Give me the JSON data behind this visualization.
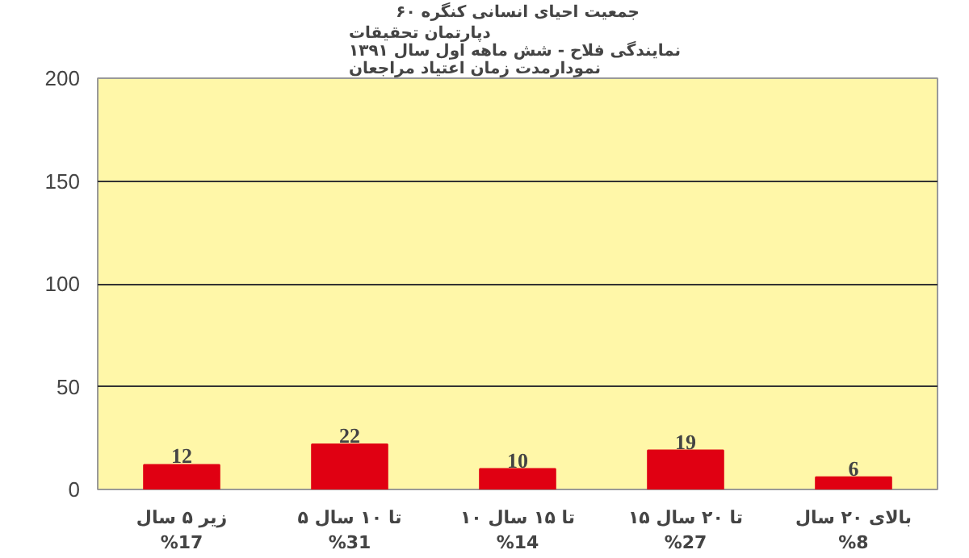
{
  "chart_data": {
    "type": "bar",
    "title": "جمعیت احیای انسانی کنگره ۶۰",
    "subtitle": "دپارتمان تحقیقات\nنمایندگی فلاح  - شش ماهه اول سال ۱۳۹۱\nنمودارمدت زمان اعتیاد مراجعان",
    "categories": [
      "زیر ۵ سال\n%17",
      "۵ تا ۱۰ سال\n%31",
      "۱۰ تا ۱۵ سال\n%14",
      "۱۵ تا ۲۰ سال\n%27",
      "بالای ۲۰ سال\n%8"
    ],
    "values": [
      12,
      22,
      10,
      19,
      6
    ],
    "color": "#e00012",
    "data_labels": true,
    "ylim": [
      0,
      200
    ],
    "yticks": [
      0,
      50,
      100,
      150,
      200
    ],
    "grid": "y"
  }
}
